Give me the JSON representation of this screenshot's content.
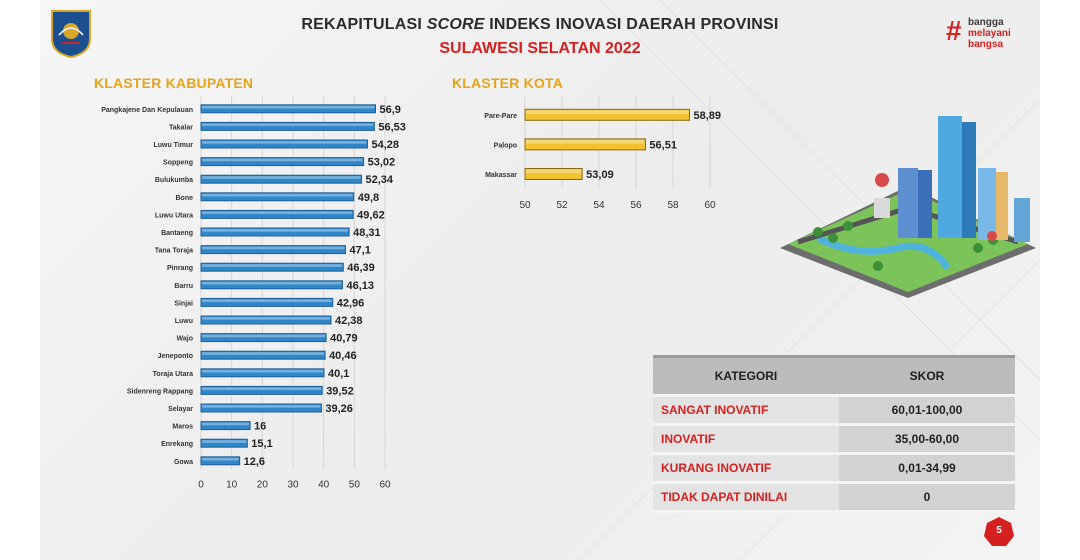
{
  "header": {
    "title_prefix": "REKAPITULASI",
    "title_italic": "SCORE",
    "title_suffix": "INDEKS INOVASI DAERAH PROVINSI",
    "subtitle": "SULAWESI SELATAN 2022"
  },
  "brand": {
    "hash": "#",
    "line1": "bangga",
    "line2": "melayani",
    "line3": "bangsa"
  },
  "sections": {
    "kabupaten": "KLASTER KABUPATEN",
    "kota": "KLASTER KOTA"
  },
  "chart_data": [
    {
      "type": "bar",
      "orientation": "horizontal",
      "title": "KLASTER KABUPATEN",
      "categories": [
        "Pangkajene Dan Kepulauan",
        "Takalar",
        "Luwu Timur",
        "Soppeng",
        "Bulukumba",
        "Bone",
        "Luwu Utara",
        "Bantaeng",
        "Tana Toraja",
        "Pinrang",
        "Barru",
        "Sinjai",
        "Luwu",
        "Wajo",
        "Jeneponto",
        "Toraja Utara",
        "Sidenreng Rappang",
        "Selayar",
        "Maros",
        "Enrekang",
        "Gowa"
      ],
      "values": [
        56.9,
        56.53,
        54.28,
        53.02,
        52.34,
        49.8,
        49.62,
        48.31,
        47.1,
        46.39,
        46.13,
        42.96,
        42.38,
        40.79,
        40.46,
        40.1,
        39.52,
        39.26,
        16,
        15.1,
        12.6
      ],
      "value_labels": [
        "56,9",
        "56,53",
        "54,28",
        "53,02",
        "52,34",
        "49,8",
        "49,62",
        "48,31",
        "47,1",
        "46,39",
        "46,13",
        "42,96",
        "42,38",
        "40,79",
        "40,46",
        "40,1",
        "39,52",
        "39,26",
        "16",
        "15,1",
        "12,6"
      ],
      "xlim": [
        0,
        60
      ],
      "ticks": [
        0,
        10,
        20,
        30,
        40,
        50,
        60
      ],
      "color": "#2f86c9",
      "grid": true
    },
    {
      "type": "bar",
      "orientation": "horizontal",
      "title": "KLASTER KOTA",
      "categories": [
        "Pare-Pare",
        "Palopo",
        "Makassar"
      ],
      "values": [
        58.89,
        56.51,
        53.09
      ],
      "value_labels": [
        "58,89",
        "56,51",
        "53,09"
      ],
      "xlim": [
        50,
        60
      ],
      "ticks": [
        50,
        52,
        54,
        56,
        58,
        60
      ],
      "color": "#f2c230",
      "grid": true
    }
  ],
  "category_table": {
    "headers": [
      "KATEGORI",
      "SKOR"
    ],
    "rows": [
      {
        "kategori": "SANGAT INOVATIF",
        "skor": "60,01-100,00"
      },
      {
        "kategori": "INOVATIF",
        "skor": "35,00-60,00"
      },
      {
        "kategori": "KURANG INOVATIF",
        "skor": "0,01-34,99"
      },
      {
        "kategori": "TIDAK DAPAT DINILAI",
        "skor": "0"
      }
    ]
  },
  "page_number": "5",
  "colors": {
    "accent_red": "#d62020",
    "section_gold": "#e8a317",
    "bar_blue": "#2f86c9",
    "bar_gold": "#f2c230"
  }
}
